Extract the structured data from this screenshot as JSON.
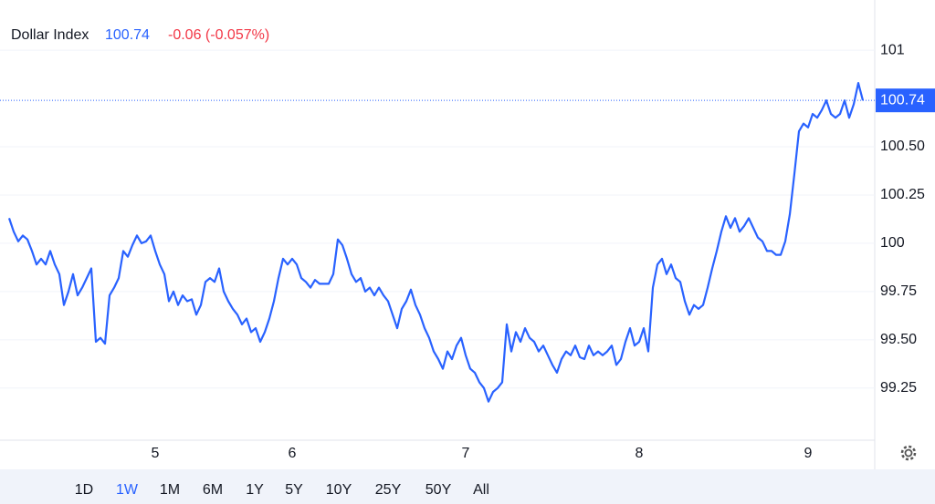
{
  "chart_data": {
    "type": "line",
    "series": [
      {
        "name": "Dollar Index",
        "color": "#2962ff",
        "values": [
          100.13,
          100.06,
          100.01,
          100.04,
          100.02,
          99.96,
          99.89,
          99.92,
          99.89,
          99.96,
          99.89,
          99.84,
          99.68,
          99.75,
          99.84,
          99.73,
          99.77,
          99.82,
          99.87,
          99.49,
          99.51,
          99.48,
          99.73,
          99.77,
          99.82,
          99.96,
          99.93,
          99.99,
          100.04,
          100.0,
          100.01,
          100.04,
          99.96,
          99.89,
          99.84,
          99.7,
          99.75,
          99.68,
          99.73,
          99.7,
          99.71,
          99.63,
          99.68,
          99.8,
          99.82,
          99.8,
          99.87,
          99.75,
          99.7,
          99.66,
          99.63,
          99.58,
          99.61,
          99.54,
          99.56,
          99.49,
          99.54,
          99.61,
          99.7,
          99.82,
          99.92,
          99.89,
          99.92,
          99.89,
          99.82,
          99.8,
          99.77,
          99.81,
          99.79,
          99.79,
          99.79,
          99.84,
          100.02,
          99.99,
          99.92,
          99.84,
          99.8,
          99.82,
          99.75,
          99.77,
          99.73,
          99.77,
          99.73,
          99.7,
          99.63,
          99.56,
          99.66,
          99.7,
          99.76,
          99.68,
          99.63,
          99.56,
          99.51,
          99.44,
          99.4,
          99.35,
          99.44,
          99.4,
          99.47,
          99.51,
          99.42,
          99.35,
          99.33,
          99.28,
          99.25,
          99.18,
          99.23,
          99.25,
          99.28,
          99.58,
          99.44,
          99.54,
          99.49,
          99.56,
          99.51,
          99.49,
          99.44,
          99.47,
          99.42,
          99.37,
          99.33,
          99.4,
          99.44,
          99.42,
          99.47,
          99.41,
          99.4,
          99.47,
          99.42,
          99.44,
          99.42,
          99.44,
          99.47,
          99.37,
          99.4,
          99.49,
          99.56,
          99.47,
          99.49,
          99.56,
          99.44,
          99.77,
          99.89,
          99.92,
          99.84,
          99.89,
          99.82,
          99.8,
          99.7,
          99.63,
          99.68,
          99.66,
          99.68,
          99.77,
          99.87,
          99.96,
          100.06,
          100.14,
          100.08,
          100.13,
          100.06,
          100.09,
          100.13,
          100.08,
          100.03,
          100.01,
          99.96,
          99.96,
          99.94,
          99.94,
          100.01,
          100.15,
          100.36,
          100.58,
          100.62,
          100.6,
          100.67,
          100.65,
          100.69,
          100.74,
          100.67,
          100.65,
          100.67,
          100.74,
          100.65,
          100.72,
          100.83,
          100.74
        ]
      }
    ],
    "categories": [
      null,
      null,
      null,
      null,
      null,
      null,
      null,
      null,
      null,
      null,
      null,
      null,
      null,
      null,
      null,
      null,
      null,
      null,
      null,
      null,
      null,
      null,
      null,
      null,
      null,
      null,
      null,
      null,
      null,
      null,
      null,
      null,
      "5",
      null,
      null,
      null,
      null,
      null,
      null,
      null,
      null,
      null,
      null,
      null,
      null,
      null,
      null,
      null,
      null,
      null,
      null,
      null,
      null,
      null,
      null,
      null,
      null,
      null,
      null,
      null,
      null,
      null,
      "6",
      null,
      null,
      null,
      null,
      null,
      null,
      null,
      null,
      null,
      null,
      null,
      null,
      null,
      null,
      null,
      null,
      null,
      null,
      null,
      null,
      null,
      null,
      null,
      null,
      null,
      null,
      null,
      null,
      null,
      null,
      null,
      null,
      null,
      null,
      null,
      null,
      null,
      "7",
      null,
      null,
      null,
      null,
      null,
      null,
      null,
      null,
      null,
      null,
      null,
      null,
      null,
      null,
      null,
      null,
      null,
      null,
      null,
      null,
      null,
      null,
      null,
      null,
      null,
      null,
      null,
      null,
      null,
      null,
      null,
      null,
      null,
      null,
      null,
      null,
      null,
      "8",
      null,
      null,
      null,
      null,
      null,
      null,
      null,
      null,
      null,
      null,
      null,
      null,
      null,
      null,
      null,
      null,
      null,
      null,
      null,
      null,
      null,
      null,
      null,
      null,
      null,
      null,
      null,
      null,
      null,
      null,
      null,
      null,
      null,
      null,
      null,
      null,
      "9",
      null,
      null,
      null,
      null,
      null,
      null,
      null,
      null,
      null,
      null,
      null,
      null
    ],
    "last_value": 100.74,
    "change": "-0.06 (-0.057%)",
    "ylim": [
      98.98,
      101.26
    ],
    "yticks": [
      99.25,
      {
        "value": 99.5,
        "label": "99.50"
      },
      99.75,
      100,
      100.25,
      {
        "value": 100.5,
        "label": "100.50"
      },
      101
    ],
    "grid": true,
    "ranges": [
      "1D",
      "1W",
      "1M",
      "6M",
      "1Y",
      "5Y",
      "10Y",
      "25Y",
      "50Y",
      "All"
    ],
    "selected_range": "1W"
  }
}
